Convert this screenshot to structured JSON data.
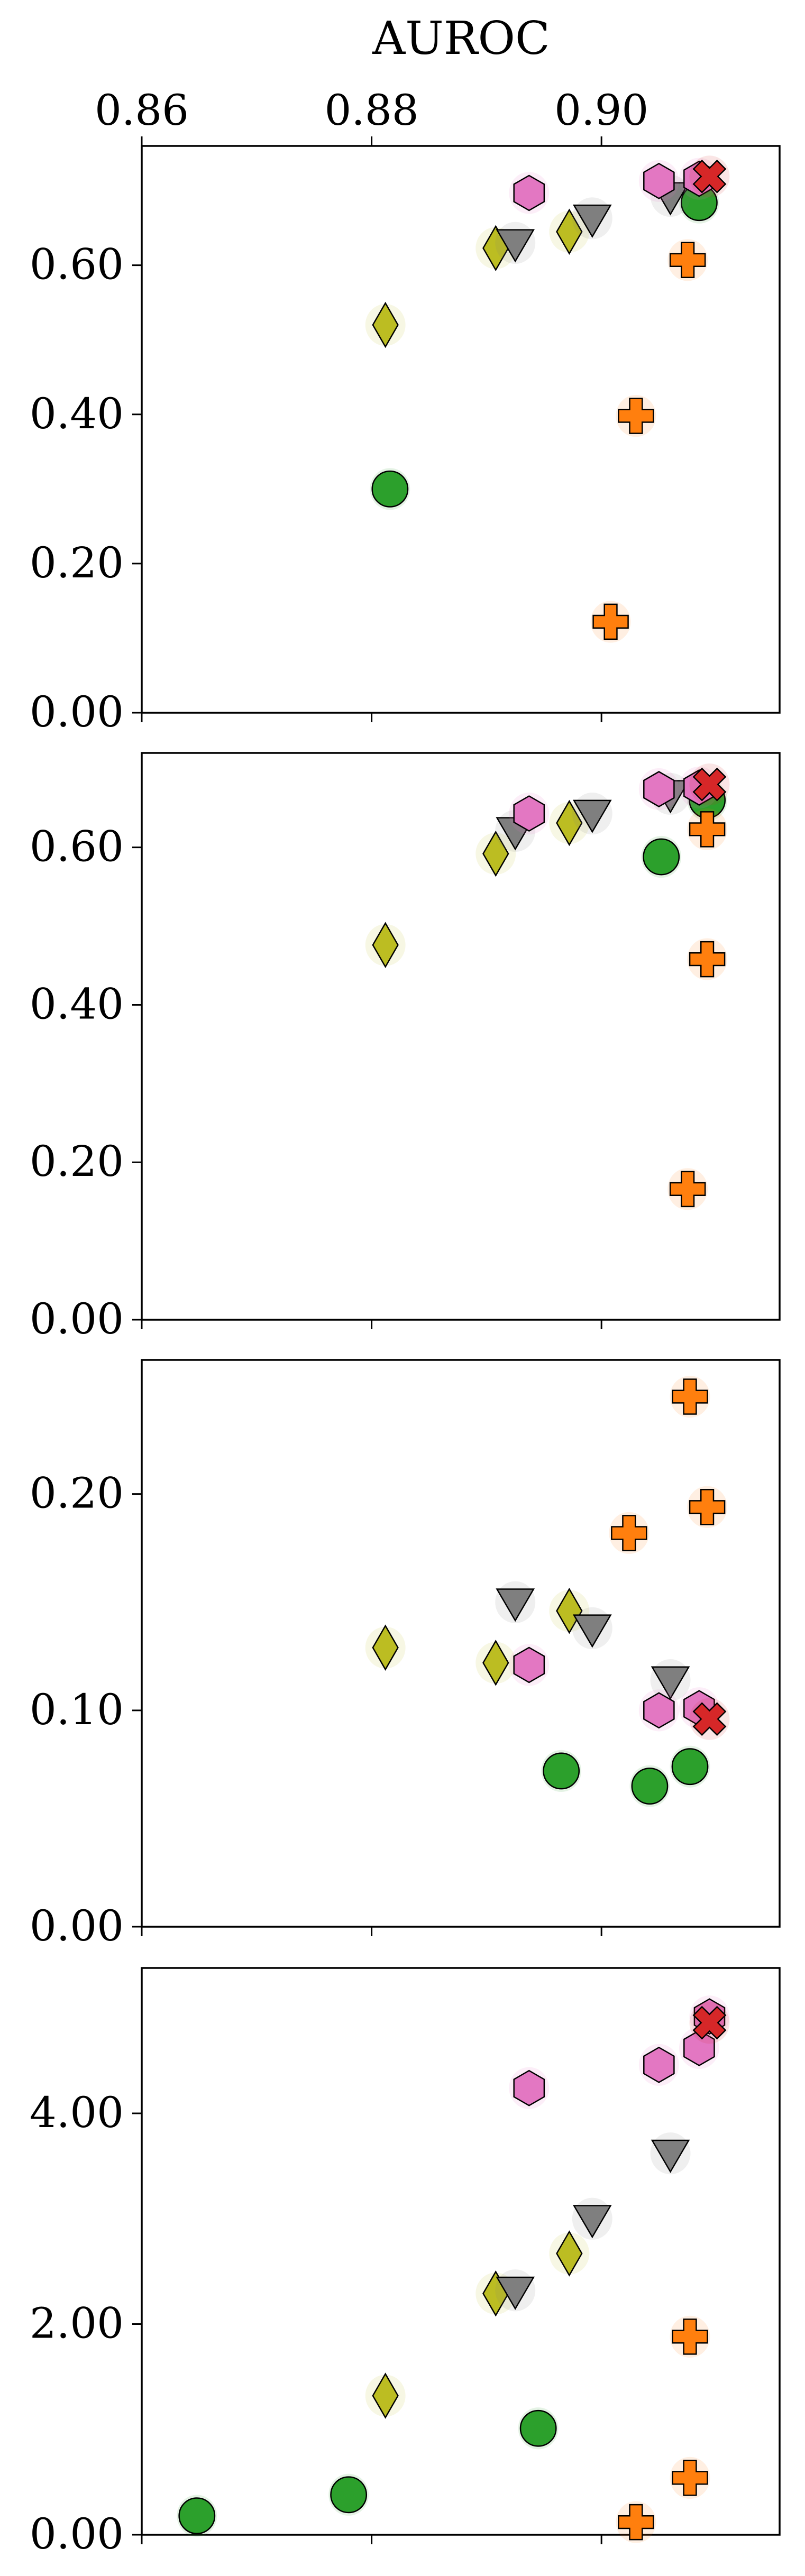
{
  "chart_data": [
    {
      "type": "scatter",
      "xlabel": "AUROC",
      "xlim": [
        0.86,
        0.9155
      ],
      "xticks": [
        "0.86",
        "0.88",
        "0.90"
      ],
      "xtick_values": [
        0.86,
        0.88,
        0.9
      ],
      "ylim": [
        0,
        0.76
      ],
      "yticks": [
        "0.00",
        "0.20",
        "0.40",
        "0.60"
      ],
      "ytick_values": [
        0,
        0.2,
        0.4,
        0.6
      ],
      "series": [
        {
          "marker": "circle",
          "color": "#2ca02c",
          "points": [
            [
              0.8816,
              0.3
            ],
            [
              0.9085,
              0.684
            ]
          ]
        },
        {
          "marker": "plus",
          "color": "#ff7f0e",
          "points": [
            [
              0.9008,
              0.122
            ],
            [
              0.903,
              0.398
            ],
            [
              0.9075,
              0.607
            ]
          ]
        },
        {
          "marker": "diamond",
          "color": "#bcbd22",
          "points": [
            [
              0.8812,
              0.52
            ],
            [
              0.8908,
              0.623
            ],
            [
              0.8972,
              0.645
            ]
          ]
        },
        {
          "marker": "triangle-down",
          "color": "#7f7f7f",
          "points": [
            [
              0.8925,
              0.63
            ],
            [
              0.8992,
              0.663
            ],
            [
              0.906,
              0.693
            ]
          ]
        },
        {
          "marker": "hexagon",
          "color": "#e377c2",
          "points": [
            [
              0.8937,
              0.697
            ],
            [
              0.905,
              0.713
            ],
            [
              0.9085,
              0.716
            ]
          ]
        },
        {
          "marker": "x",
          "color": "#d62728",
          "points": [
            [
              0.9094,
              0.719
            ]
          ]
        }
      ]
    },
    {
      "type": "scatter",
      "xlim": [
        0.86,
        0.9155
      ],
      "ylim": [
        0,
        0.72
      ],
      "yticks": [
        "0.00",
        "0.20",
        "0.40",
        "0.60"
      ],
      "ytick_values": [
        0,
        0.2,
        0.4,
        0.6
      ],
      "series": [
        {
          "marker": "circle",
          "color": "#2ca02c",
          "points": [
            [
              0.9052,
              0.588
            ],
            [
              0.9092,
              0.66
            ]
          ]
        },
        {
          "marker": "plus",
          "color": "#ff7f0e",
          "points": [
            [
              0.9075,
              0.166
            ],
            [
              0.9092,
              0.458
            ],
            [
              0.9092,
              0.623
            ]
          ]
        },
        {
          "marker": "diamond",
          "color": "#bcbd22",
          "points": [
            [
              0.8812,
              0.476
            ],
            [
              0.8908,
              0.592
            ],
            [
              0.8972,
              0.631
            ]
          ]
        },
        {
          "marker": "triangle-down",
          "color": "#7f7f7f",
          "points": [
            [
              0.8925,
              0.621
            ],
            [
              0.8992,
              0.643
            ],
            [
              0.906,
              0.668
            ]
          ]
        },
        {
          "marker": "hexagon",
          "color": "#e377c2",
          "points": [
            [
              0.8937,
              0.643
            ],
            [
              0.905,
              0.674
            ],
            [
              0.9085,
              0.676
            ]
          ]
        },
        {
          "marker": "x",
          "color": "#d62728",
          "points": [
            [
              0.9094,
              0.68
            ]
          ]
        }
      ]
    },
    {
      "type": "scatter",
      "xlim": [
        0.86,
        0.9155
      ],
      "ylim": [
        0,
        0.262
      ],
      "yticks": [
        "0.00",
        "0.10",
        "0.20"
      ],
      "ytick_values": [
        0,
        0.1,
        0.2
      ],
      "series": [
        {
          "marker": "circle",
          "color": "#2ca02c",
          "points": [
            [
              0.8965,
              0.072
            ],
            [
              0.9042,
              0.065
            ],
            [
              0.9077,
              0.074
            ]
          ]
        },
        {
          "marker": "plus",
          "color": "#ff7f0e",
          "points": [
            [
              0.9024,
              0.182
            ],
            [
              0.9077,
              0.245
            ],
            [
              0.9092,
              0.194
            ]
          ]
        },
        {
          "marker": "diamond",
          "color": "#bcbd22",
          "points": [
            [
              0.8812,
              0.129
            ],
            [
              0.8908,
              0.122
            ],
            [
              0.8972,
              0.146
            ]
          ]
        },
        {
          "marker": "triangle-down",
          "color": "#7f7f7f",
          "points": [
            [
              0.8925,
              0.15
            ],
            [
              0.8992,
              0.138
            ],
            [
              0.906,
              0.114
            ]
          ]
        },
        {
          "marker": "hexagon",
          "color": "#e377c2",
          "points": [
            [
              0.8937,
              0.121
            ],
            [
              0.905,
              0.1
            ],
            [
              0.9085,
              0.101
            ]
          ]
        },
        {
          "marker": "x",
          "color": "#d62728",
          "points": [
            [
              0.9094,
              0.096
            ]
          ]
        }
      ]
    },
    {
      "type": "scatter",
      "xlim": [
        0.86,
        0.9155
      ],
      "ylim": [
        0,
        5.38
      ],
      "yticks": [
        "0.00",
        "2.00",
        "4.00"
      ],
      "ytick_values": [
        0,
        2,
        4
      ],
      "series": [
        {
          "marker": "circle",
          "color": "#2ca02c",
          "points": [
            [
              0.8648,
              0.18
            ],
            [
              0.878,
              0.38
            ],
            [
              0.8945,
              1.01
            ]
          ]
        },
        {
          "marker": "plus",
          "color": "#ff7f0e",
          "points": [
            [
              0.903,
              0.12
            ],
            [
              0.9077,
              0.54
            ],
            [
              0.9077,
              1.88
            ]
          ]
        },
        {
          "marker": "diamond",
          "color": "#bcbd22",
          "points": [
            [
              0.8812,
              1.32
            ],
            [
              0.8908,
              2.29
            ],
            [
              0.8972,
              2.67
            ]
          ]
        },
        {
          "marker": "triangle-down",
          "color": "#7f7f7f",
          "points": [
            [
              0.8925,
              2.32
            ],
            [
              0.8992,
              3.0
            ],
            [
              0.906,
              3.62
            ]
          ]
        },
        {
          "marker": "hexagon",
          "color": "#e377c2",
          "points": [
            [
              0.8937,
              4.24
            ],
            [
              0.905,
              4.46
            ],
            [
              0.9085,
              4.62
            ],
            [
              0.9094,
              4.92
            ]
          ]
        },
        {
          "marker": "x",
          "color": "#d62728",
          "points": [
            [
              0.9094,
              4.86
            ]
          ]
        }
      ]
    }
  ]
}
